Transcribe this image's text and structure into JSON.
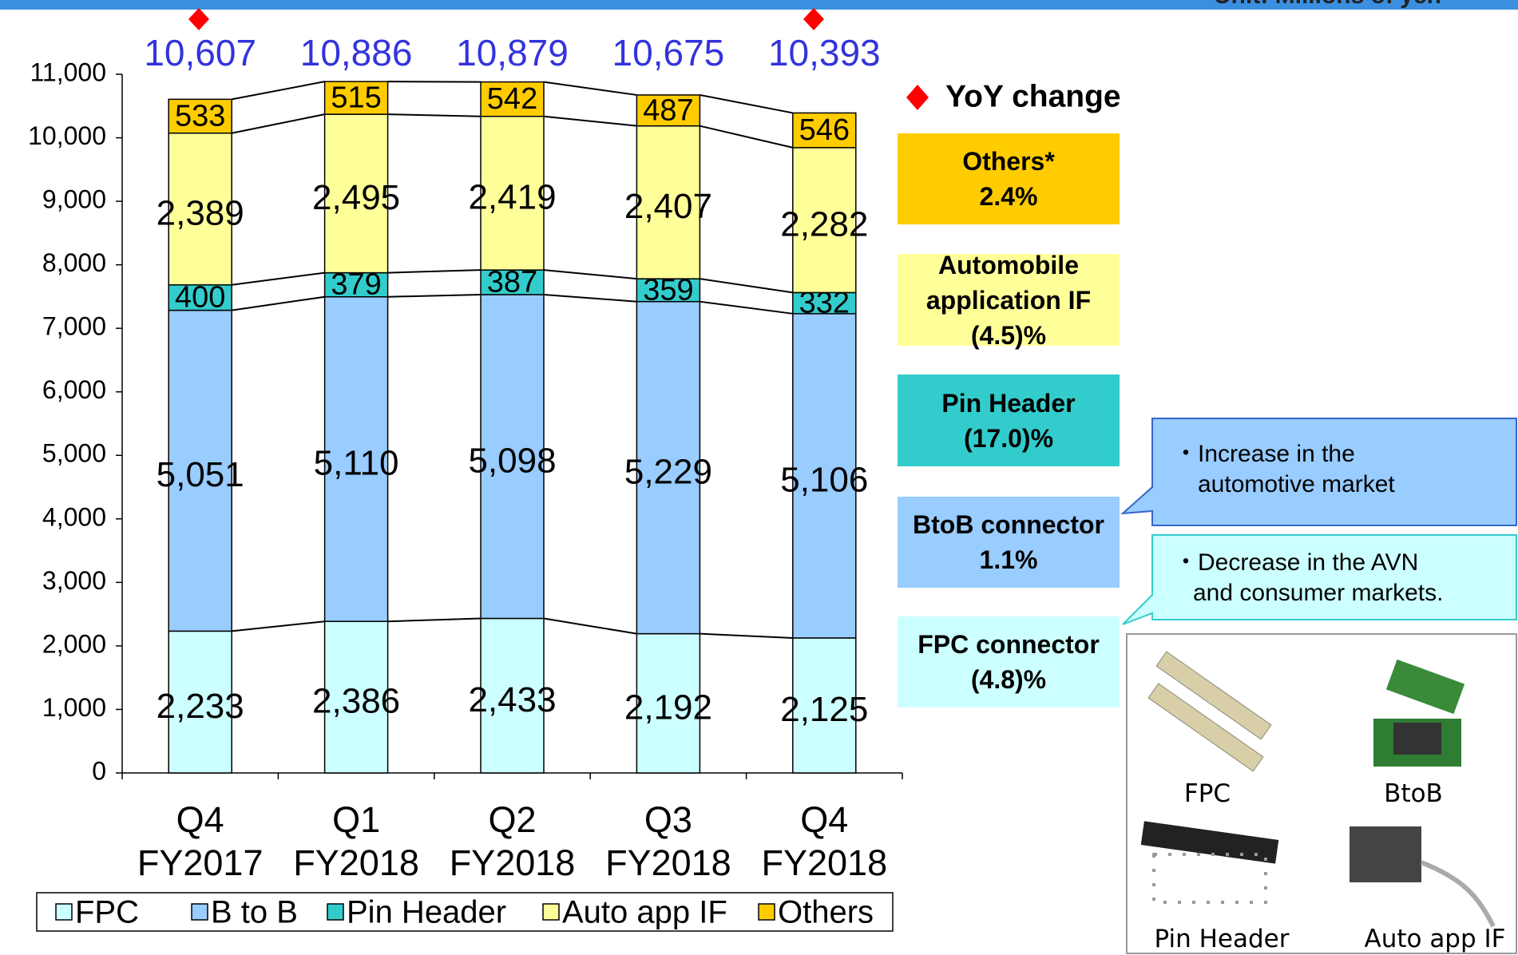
{
  "header": {
    "unit": "Unit: Millions of yen"
  },
  "chart_data": {
    "type": "stacked_bar",
    "categories": [
      "Q4 FY2017",
      "Q1 FY2018",
      "Q2 FY2018",
      "Q3 FY2018",
      "Q4 FY2018"
    ],
    "series": [
      {
        "name": "FPC",
        "color": "#ccffff",
        "values": [
          2233,
          2386,
          2433,
          2192,
          2125
        ],
        "value_labels": [
          "2,233",
          "2,386",
          "2,433",
          "2,192",
          "2,125"
        ]
      },
      {
        "name": "B to B",
        "color": "#99ccff",
        "values": [
          5051,
          5110,
          5098,
          5229,
          5106
        ],
        "value_labels": [
          "5,051",
          "5,110",
          "5,098",
          "5,229",
          "5,106"
        ]
      },
      {
        "name": "Pin Header",
        "color": "#33cccc",
        "values": [
          400,
          379,
          387,
          359,
          332
        ]
      },
      {
        "name": "Auto app IF",
        "color": "#ffff99",
        "values": [
          2389,
          2495,
          2419,
          2407,
          2282
        ],
        "value_labels": [
          "2,389",
          "2,495",
          "2,419",
          "2,407",
          "2,282"
        ]
      },
      {
        "name": "Others",
        "color": "#ffcc00",
        "values": [
          533,
          515,
          542,
          487,
          546
        ]
      }
    ],
    "totals": {
      "values": [
        10607,
        10886,
        10879,
        10675,
        10393
      ],
      "value_labels": [
        "10,607",
        "10,886",
        "10,879",
        "10,675",
        "10,393"
      ],
      "color": "#3333dd"
    },
    "ylim": [
      0,
      11000
    ],
    "yticks": [
      0,
      {
        "value": 1000,
        "label": "1,000"
      },
      {
        "value": 2000,
        "label": "2,000"
      },
      {
        "value": 3000,
        "label": "3,000"
      },
      {
        "value": 4000,
        "label": "4,000"
      },
      {
        "value": 5000,
        "label": "5,000"
      },
      {
        "value": 6000,
        "label": "6,000"
      },
      {
        "value": 7000,
        "label": "7,000"
      },
      {
        "value": 8000,
        "label": "8,000"
      },
      {
        "value": 9000,
        "label": "9,000"
      },
      {
        "value": 10000,
        "label": "10,000"
      },
      {
        "value": 11000,
        "label": "11,000"
      }
    ],
    "legend": "bottom"
  },
  "yoy": {
    "title": "YoY change",
    "items": [
      {
        "name": "Others*",
        "change": "2.4%",
        "color": "#ffcc00"
      },
      {
        "name": "Automobile application IF",
        "change": "(4.5)%",
        "color": "#ffff99"
      },
      {
        "name": "Pin Header",
        "change": "(17.0)%",
        "color": "#33cccc"
      },
      {
        "name": "BtoB connector",
        "change": "1.1%",
        "color": "#99ccff"
      },
      {
        "name": "FPC connector",
        "change": "(4.8)%",
        "color": "#ccffff"
      }
    ]
  },
  "callouts": [
    {
      "lines": [
        "・Increase in the",
        "automotive market"
      ]
    },
    {
      "lines": [
        "・Decrease in the AVN",
        "and consumer markets."
      ]
    }
  ],
  "products": [
    "FPC",
    "BtoB",
    "Pin Header",
    "Auto app IF"
  ]
}
